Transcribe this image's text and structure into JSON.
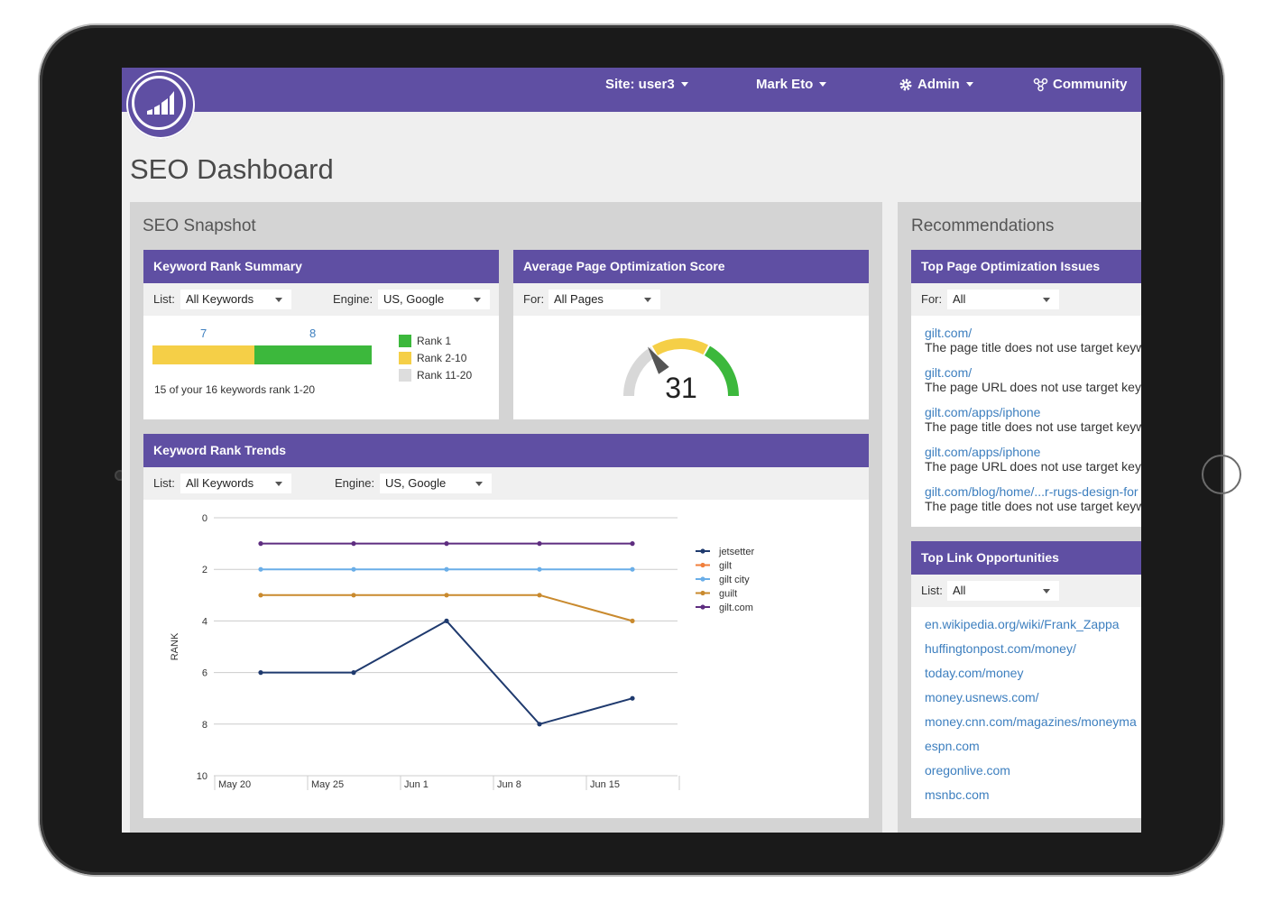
{
  "header": {
    "site": "Site: user3",
    "user": "Mark Eto",
    "admin": "Admin",
    "community": "Community"
  },
  "page_title": "SEO Dashboard",
  "snapshot": {
    "title": "SEO Snapshot",
    "keyword_rank_summary": {
      "title": "Keyword Rank Summary",
      "list_label": "List:",
      "list_value": "All Keywords",
      "engine_label": "Engine:",
      "engine_value": "US, Google",
      "rank1_count": "7",
      "rank2_count": "8",
      "rank1_value": 7,
      "rank2_value": 8,
      "legend": [
        "Rank 1",
        "Rank 2-10",
        "Rank 11-20"
      ],
      "summary": "15 of your 16 keywords rank 1-20",
      "colors": {
        "rank1": "#3cb83c",
        "rank2": "#f5cf47",
        "rank3": "#dddddd"
      }
    },
    "optimization_score": {
      "title": "Average Page Optimization Score",
      "for_label": "For:",
      "for_value": "All Pages",
      "score": "31",
      "score_value": 31
    },
    "rank_trends": {
      "title": "Keyword Rank Trends",
      "list_label": "List:",
      "list_value": "All Keywords",
      "engine_label": "Engine:",
      "engine_value": "US, Google",
      "ylabel": "RANK"
    }
  },
  "chart_data": {
    "type": "line",
    "x": [
      "May 20",
      "May 25",
      "Jun 1",
      "Jun 8",
      "Jun 15"
    ],
    "ylabel": "RANK",
    "ylim": [
      0,
      10
    ],
    "y_inverted": true,
    "yticks": [
      "0",
      "2",
      "4",
      "6",
      "8",
      "10"
    ],
    "legend_position": "right",
    "grid": true,
    "series": [
      {
        "name": "jetsetter",
        "color": "#1f3a6e",
        "values": [
          6,
          6,
          4,
          8,
          7
        ]
      },
      {
        "name": "gilt",
        "color": "#f07f3c",
        "values": [
          3,
          3,
          3,
          3,
          4
        ]
      },
      {
        "name": "gilt city",
        "color": "#6aaee8",
        "values": [
          2,
          2,
          2,
          2,
          2
        ]
      },
      {
        "name": "guilt",
        "color": "#c98a2e",
        "values": [
          3,
          3,
          3,
          3,
          4
        ]
      },
      {
        "name": "gilt.com",
        "color": "#5e2d80",
        "values": [
          1,
          1,
          1,
          1,
          1
        ]
      }
    ]
  },
  "recommendations": {
    "title": "Recommendations",
    "issues": {
      "title": "Top Page Optimization Issues",
      "for_label": "For:",
      "for_value": "All",
      "items": [
        {
          "url": "gilt.com/",
          "text": "The page title does not use target keyw"
        },
        {
          "url": "gilt.com/",
          "text": "The page URL does not use target keyw"
        },
        {
          "url": "gilt.com/apps/iphone",
          "text": "The page title does not use target keyw"
        },
        {
          "url": "gilt.com/apps/iphone",
          "text": "The page URL does not use target keyw"
        },
        {
          "url": "gilt.com/blog/home/...r-rugs-design-for",
          "text": "The page title does not use target keyw"
        }
      ]
    },
    "links": {
      "title": "Top Link Opportunities",
      "list_label": "List:",
      "list_value": "All",
      "items": [
        "en.wikipedia.org/wiki/Frank_Zappa",
        "huffingtonpost.com/money/",
        "today.com/money",
        "money.usnews.com/",
        "money.cnn.com/magazines/moneyma",
        "espn.com",
        "oregonlive.com",
        "msnbc.com"
      ]
    }
  }
}
